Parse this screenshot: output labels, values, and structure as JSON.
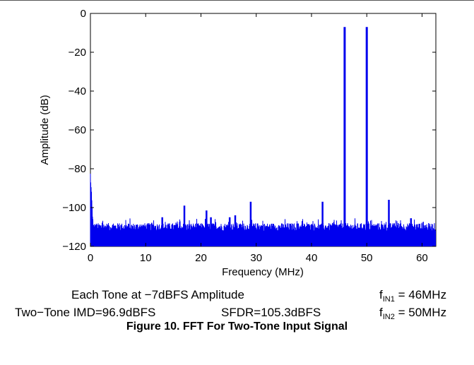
{
  "chart_data": {
    "type": "line",
    "xlabel": "Frequency (MHz)",
    "ylabel": "Amplitude (dB)",
    "xlim": [
      0,
      62.5
    ],
    "ylim": [
      -120,
      0
    ],
    "x_ticks": [
      0,
      10,
      20,
      30,
      40,
      50,
      60
    ],
    "y_ticks": [
      0,
      -20,
      -40,
      -60,
      -80,
      -100,
      -120
    ],
    "x_tick_labels": [
      "0",
      "10",
      "20",
      "30",
      "40",
      "50",
      "60"
    ],
    "y_tick_labels": [
      "0",
      "−20",
      "−40",
      "−60",
      "−80",
      "−100",
      "−120"
    ],
    "grid": false,
    "line_color": "#0000ee",
    "noise_floor_db": -110,
    "dc_start_db": -83,
    "peaks": [
      {
        "x": 13,
        "y": -105
      },
      {
        "x": 17,
        "y": -99
      },
      {
        "x": 21,
        "y": -101.5
      },
      {
        "x": 21.8,
        "y": -105
      },
      {
        "x": 25.2,
        "y": -105
      },
      {
        "x": 26.2,
        "y": -104
      },
      {
        "x": 29,
        "y": -97
      },
      {
        "x": 42,
        "y": -97
      },
      {
        "x": 46,
        "y": -7
      },
      {
        "x": 50,
        "y": -7
      },
      {
        "x": 54,
        "y": -96
      },
      {
        "x": 58,
        "y": -105.5
      }
    ]
  },
  "annotations": {
    "line1": "Each Tone at −7dBFS Amplitude",
    "fin1_f": "f",
    "fin1_sub": "IN1",
    "fin1_val": " = 46MHz",
    "line2_imd": "Two−Tone IMD=96.9dBFS",
    "line2_sfdr": "SFDR=105.3dBFS",
    "fin2_f": "f",
    "fin2_sub": "IN2",
    "fin2_val": " = 50MHz"
  },
  "caption": "Figure 10. FFT For Two-Tone Input Signal"
}
